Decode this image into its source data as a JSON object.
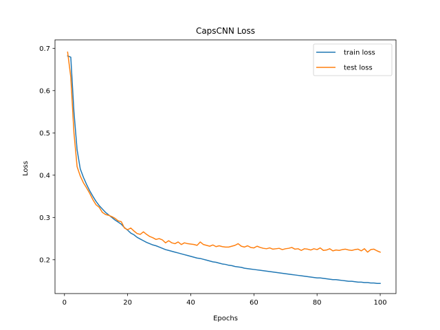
{
  "chart_data": {
    "type": "line",
    "title": "CapsCNN Loss",
    "xlabel": "Epochs",
    "ylabel": "Loss",
    "xlim": [
      -3,
      105
    ],
    "ylim": [
      0.12,
      0.72
    ],
    "xticks": [
      0,
      20,
      40,
      60,
      80,
      100
    ],
    "yticks": [
      0.2,
      0.3,
      0.4,
      0.5,
      0.6,
      0.7
    ],
    "grid": false,
    "legend_position": "top-right",
    "x": [
      1,
      2,
      3,
      4,
      5,
      6,
      7,
      8,
      9,
      10,
      11,
      12,
      13,
      14,
      15,
      16,
      17,
      18,
      19,
      20,
      21,
      22,
      23,
      24,
      25,
      26,
      27,
      28,
      29,
      30,
      31,
      32,
      33,
      34,
      35,
      36,
      37,
      38,
      39,
      40,
      41,
      42,
      43,
      44,
      45,
      46,
      47,
      48,
      49,
      50,
      51,
      52,
      53,
      54,
      55,
      56,
      57,
      58,
      59,
      60,
      61,
      62,
      63,
      64,
      65,
      66,
      67,
      68,
      69,
      70,
      71,
      72,
      73,
      74,
      75,
      76,
      77,
      78,
      79,
      80,
      81,
      82,
      83,
      84,
      85,
      86,
      87,
      88,
      89,
      90,
      91,
      92,
      93,
      94,
      95,
      96,
      97,
      98,
      99,
      100
    ],
    "series": [
      {
        "name": "train loss",
        "color": "#1f77b4",
        "values": [
          0.682,
          0.679,
          0.55,
          0.46,
          0.415,
          0.395,
          0.378,
          0.363,
          0.35,
          0.338,
          0.328,
          0.32,
          0.312,
          0.306,
          0.3,
          0.294,
          0.289,
          0.284,
          0.276,
          0.27,
          0.263,
          0.259,
          0.253,
          0.249,
          0.245,
          0.241,
          0.238,
          0.235,
          0.233,
          0.23,
          0.227,
          0.224,
          0.222,
          0.22,
          0.218,
          0.216,
          0.214,
          0.212,
          0.21,
          0.208,
          0.206,
          0.204,
          0.203,
          0.201,
          0.199,
          0.197,
          0.195,
          0.194,
          0.192,
          0.19,
          0.189,
          0.187,
          0.186,
          0.184,
          0.183,
          0.182,
          0.18,
          0.179,
          0.178,
          0.177,
          0.176,
          0.175,
          0.174,
          0.173,
          0.172,
          0.171,
          0.17,
          0.169,
          0.168,
          0.167,
          0.166,
          0.165,
          0.164,
          0.163,
          0.162,
          0.161,
          0.16,
          0.159,
          0.158,
          0.157,
          0.157,
          0.156,
          0.155,
          0.154,
          0.153,
          0.153,
          0.152,
          0.151,
          0.15,
          0.149,
          0.149,
          0.148,
          0.147,
          0.147,
          0.146,
          0.146,
          0.145,
          0.145,
          0.144,
          0.144
        ]
      },
      {
        "name": "test loss",
        "color": "#ff7f0e",
        "values": [
          0.691,
          0.632,
          0.5,
          0.42,
          0.398,
          0.382,
          0.37,
          0.357,
          0.342,
          0.33,
          0.324,
          0.312,
          0.307,
          0.305,
          0.302,
          0.298,
          0.292,
          0.29,
          0.275,
          0.271,
          0.275,
          0.268,
          0.262,
          0.26,
          0.266,
          0.26,
          0.255,
          0.252,
          0.248,
          0.25,
          0.247,
          0.24,
          0.245,
          0.24,
          0.238,
          0.242,
          0.236,
          0.24,
          0.238,
          0.237,
          0.236,
          0.234,
          0.242,
          0.236,
          0.234,
          0.232,
          0.235,
          0.231,
          0.233,
          0.231,
          0.23,
          0.23,
          0.232,
          0.234,
          0.238,
          0.232,
          0.23,
          0.233,
          0.229,
          0.228,
          0.232,
          0.229,
          0.227,
          0.226,
          0.228,
          0.225,
          0.226,
          0.227,
          0.224,
          0.226,
          0.227,
          0.229,
          0.225,
          0.226,
          0.222,
          0.226,
          0.225,
          0.223,
          0.226,
          0.224,
          0.228,
          0.222,
          0.223,
          0.226,
          0.221,
          0.223,
          0.222,
          0.224,
          0.225,
          0.223,
          0.222,
          0.224,
          0.225,
          0.221,
          0.226,
          0.218,
          0.224,
          0.225,
          0.221,
          0.218
        ]
      }
    ]
  }
}
